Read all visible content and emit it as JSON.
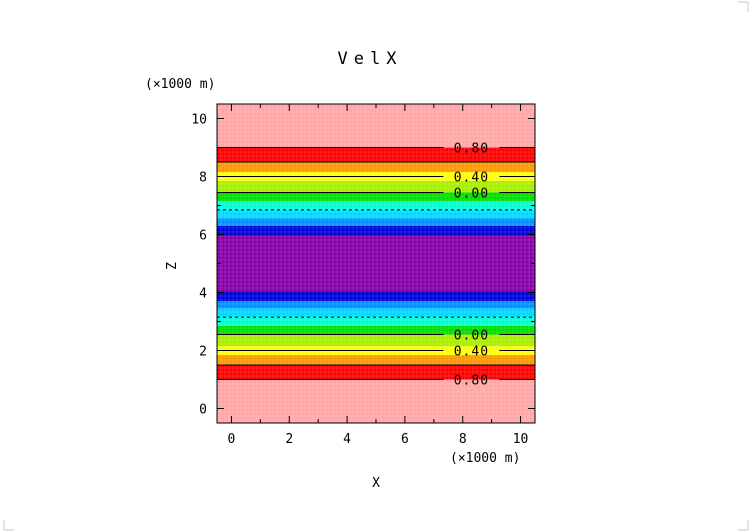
{
  "chart_data": {
    "type": "heatmap",
    "title": "VelX",
    "xlabel": "X",
    "ylabel": "Z",
    "x_unit_label": "(×1000 m)",
    "y_unit_label": "(×1000 m)",
    "xlim": [
      -0.5,
      10.5
    ],
    "ylim": [
      -0.5,
      10.5
    ],
    "x_ticks": [
      0,
      2,
      4,
      6,
      8,
      10
    ],
    "y_ticks": [
      0,
      2,
      4,
      6,
      8,
      10
    ],
    "x_tick_labels": [
      "0",
      "2",
      "4",
      "6",
      "8",
      "10"
    ],
    "y_tick_labels": [
      "0",
      "2",
      "4",
      "6",
      "8",
      "10"
    ],
    "grid": false,
    "bands": [
      {
        "z0": -0.5,
        "z1": 1.0,
        "color": "#ffa7a7"
      },
      {
        "z0": 1.0,
        "z1": 1.5,
        "color": "#ff0000"
      },
      {
        "z0": 1.5,
        "z1": 1.85,
        "color": "#ff9900"
      },
      {
        "z0": 1.85,
        "z1": 2.15,
        "color": "#ffff00"
      },
      {
        "z0": 2.15,
        "z1": 2.55,
        "color": "#a8f000"
      },
      {
        "z0": 2.55,
        "z1": 2.85,
        "color": "#00dd00"
      },
      {
        "z0": 2.85,
        "z1": 3.15,
        "color": "#00ffd0"
      },
      {
        "z0": 3.15,
        "z1": 3.45,
        "color": "#00d8ff"
      },
      {
        "z0": 3.45,
        "z1": 3.7,
        "color": "#0090ff"
      },
      {
        "z0": 3.7,
        "z1": 4.05,
        "color": "#0000dd"
      },
      {
        "z0": 4.05,
        "z1": 5.95,
        "color": "#8800aa"
      },
      {
        "z0": 5.95,
        "z1": 6.3,
        "color": "#0000dd"
      },
      {
        "z0": 6.3,
        "z1": 6.55,
        "color": "#0090ff"
      },
      {
        "z0": 6.55,
        "z1": 6.85,
        "color": "#00d8ff"
      },
      {
        "z0": 6.85,
        "z1": 7.15,
        "color": "#00ffd0"
      },
      {
        "z0": 7.15,
        "z1": 7.45,
        "color": "#00dd00"
      },
      {
        "z0": 7.45,
        "z1": 7.85,
        "color": "#a8f000"
      },
      {
        "z0": 7.85,
        "z1": 8.15,
        "color": "#ffff00"
      },
      {
        "z0": 8.15,
        "z1": 8.5,
        "color": "#ff9900"
      },
      {
        "z0": 8.5,
        "z1": 9.0,
        "color": "#ff0000"
      },
      {
        "z0": 9.0,
        "z1": 10.5,
        "color": "#ffa7a7"
      }
    ],
    "contours": [
      {
        "z": 1.0,
        "label": "0.80",
        "labeled": true
      },
      {
        "z": 1.5,
        "label": "",
        "labeled": false
      },
      {
        "z": 2.0,
        "label": "0.40",
        "labeled": true
      },
      {
        "z": 2.55,
        "label": "0.00",
        "labeled": true
      },
      {
        "z": 3.15,
        "label": "",
        "labeled": false,
        "dashed": true
      },
      {
        "z": 6.85,
        "label": "",
        "labeled": false,
        "dashed": true
      },
      {
        "z": 7.45,
        "label": "0.00",
        "labeled": true
      },
      {
        "z": 8.0,
        "label": "0.40",
        "labeled": true
      },
      {
        "z": 8.5,
        "label": "",
        "labeled": false
      },
      {
        "z": 9.0,
        "label": "0.80",
        "labeled": true
      }
    ],
    "contour_label_x": 8.3
  }
}
